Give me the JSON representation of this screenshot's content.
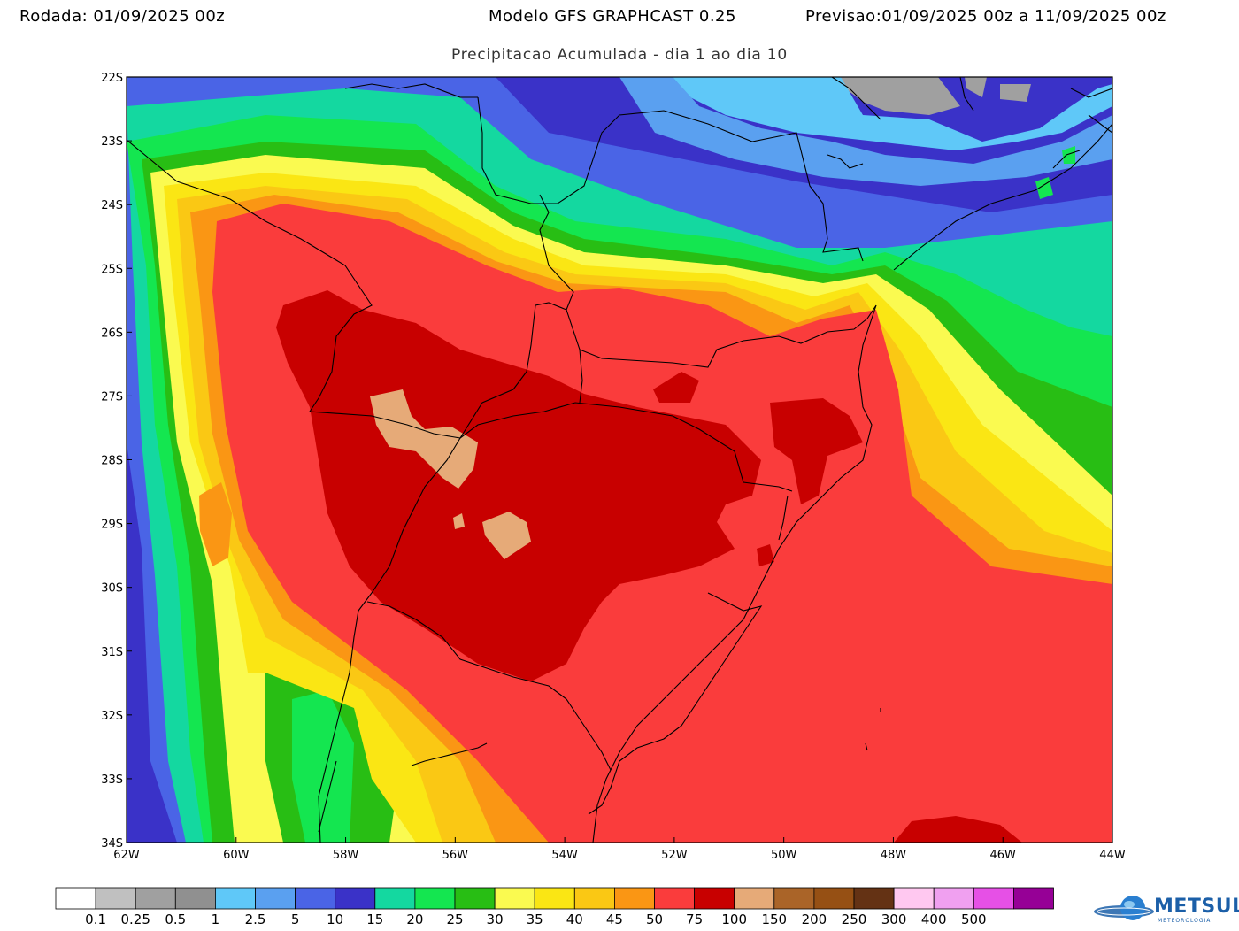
{
  "header": {
    "run_label": "Rodada:",
    "run_value": "01/09/2025 00z",
    "model": "Modelo GFS GRAPHCAST 0.25",
    "forecast_label": "Previsao:",
    "forecast_value": "01/09/2025 00z a 11/09/2025 00z"
  },
  "subtitle": "Precipitacao Acumulada - dia 1 ao dia 10",
  "axes": {
    "lat_labels": [
      "22S",
      "23S",
      "24S",
      "25S",
      "26S",
      "27S",
      "28S",
      "29S",
      "30S",
      "31S",
      "32S",
      "33S",
      "34S"
    ],
    "lon_labels": [
      "62W",
      "60W",
      "58W",
      "56W",
      "54W",
      "52W",
      "50W",
      "48W",
      "46W",
      "44W"
    ]
  },
  "legend": {
    "colors": [
      "#ffffff",
      "#c0c0c0",
      "#a0a0a0",
      "#909090",
      "#5fc8f8",
      "#5aa0f0",
      "#4a64e6",
      "#3a32c8",
      "#14d8a0",
      "#14e650",
      "#28be14",
      "#fafa50",
      "#fae614",
      "#fac814",
      "#fa9614",
      "#fa3c3c",
      "#c80000",
      "#e6aa78",
      "#aa6428",
      "#965014",
      "#643214",
      "#ffc8f0",
      "#f0a0f0",
      "#e650e6",
      "#960096"
    ],
    "labels": [
      "0.1",
      "0.25",
      "0.5",
      "1",
      "2.5",
      "5",
      "10",
      "15",
      "20",
      "25",
      "30",
      "35",
      "40",
      "45",
      "50",
      "75",
      "100",
      "150",
      "200",
      "250",
      "300",
      "400",
      "500"
    ]
  },
  "logo": {
    "name": "METSUL",
    "sub": "METEOROLOGIA"
  }
}
